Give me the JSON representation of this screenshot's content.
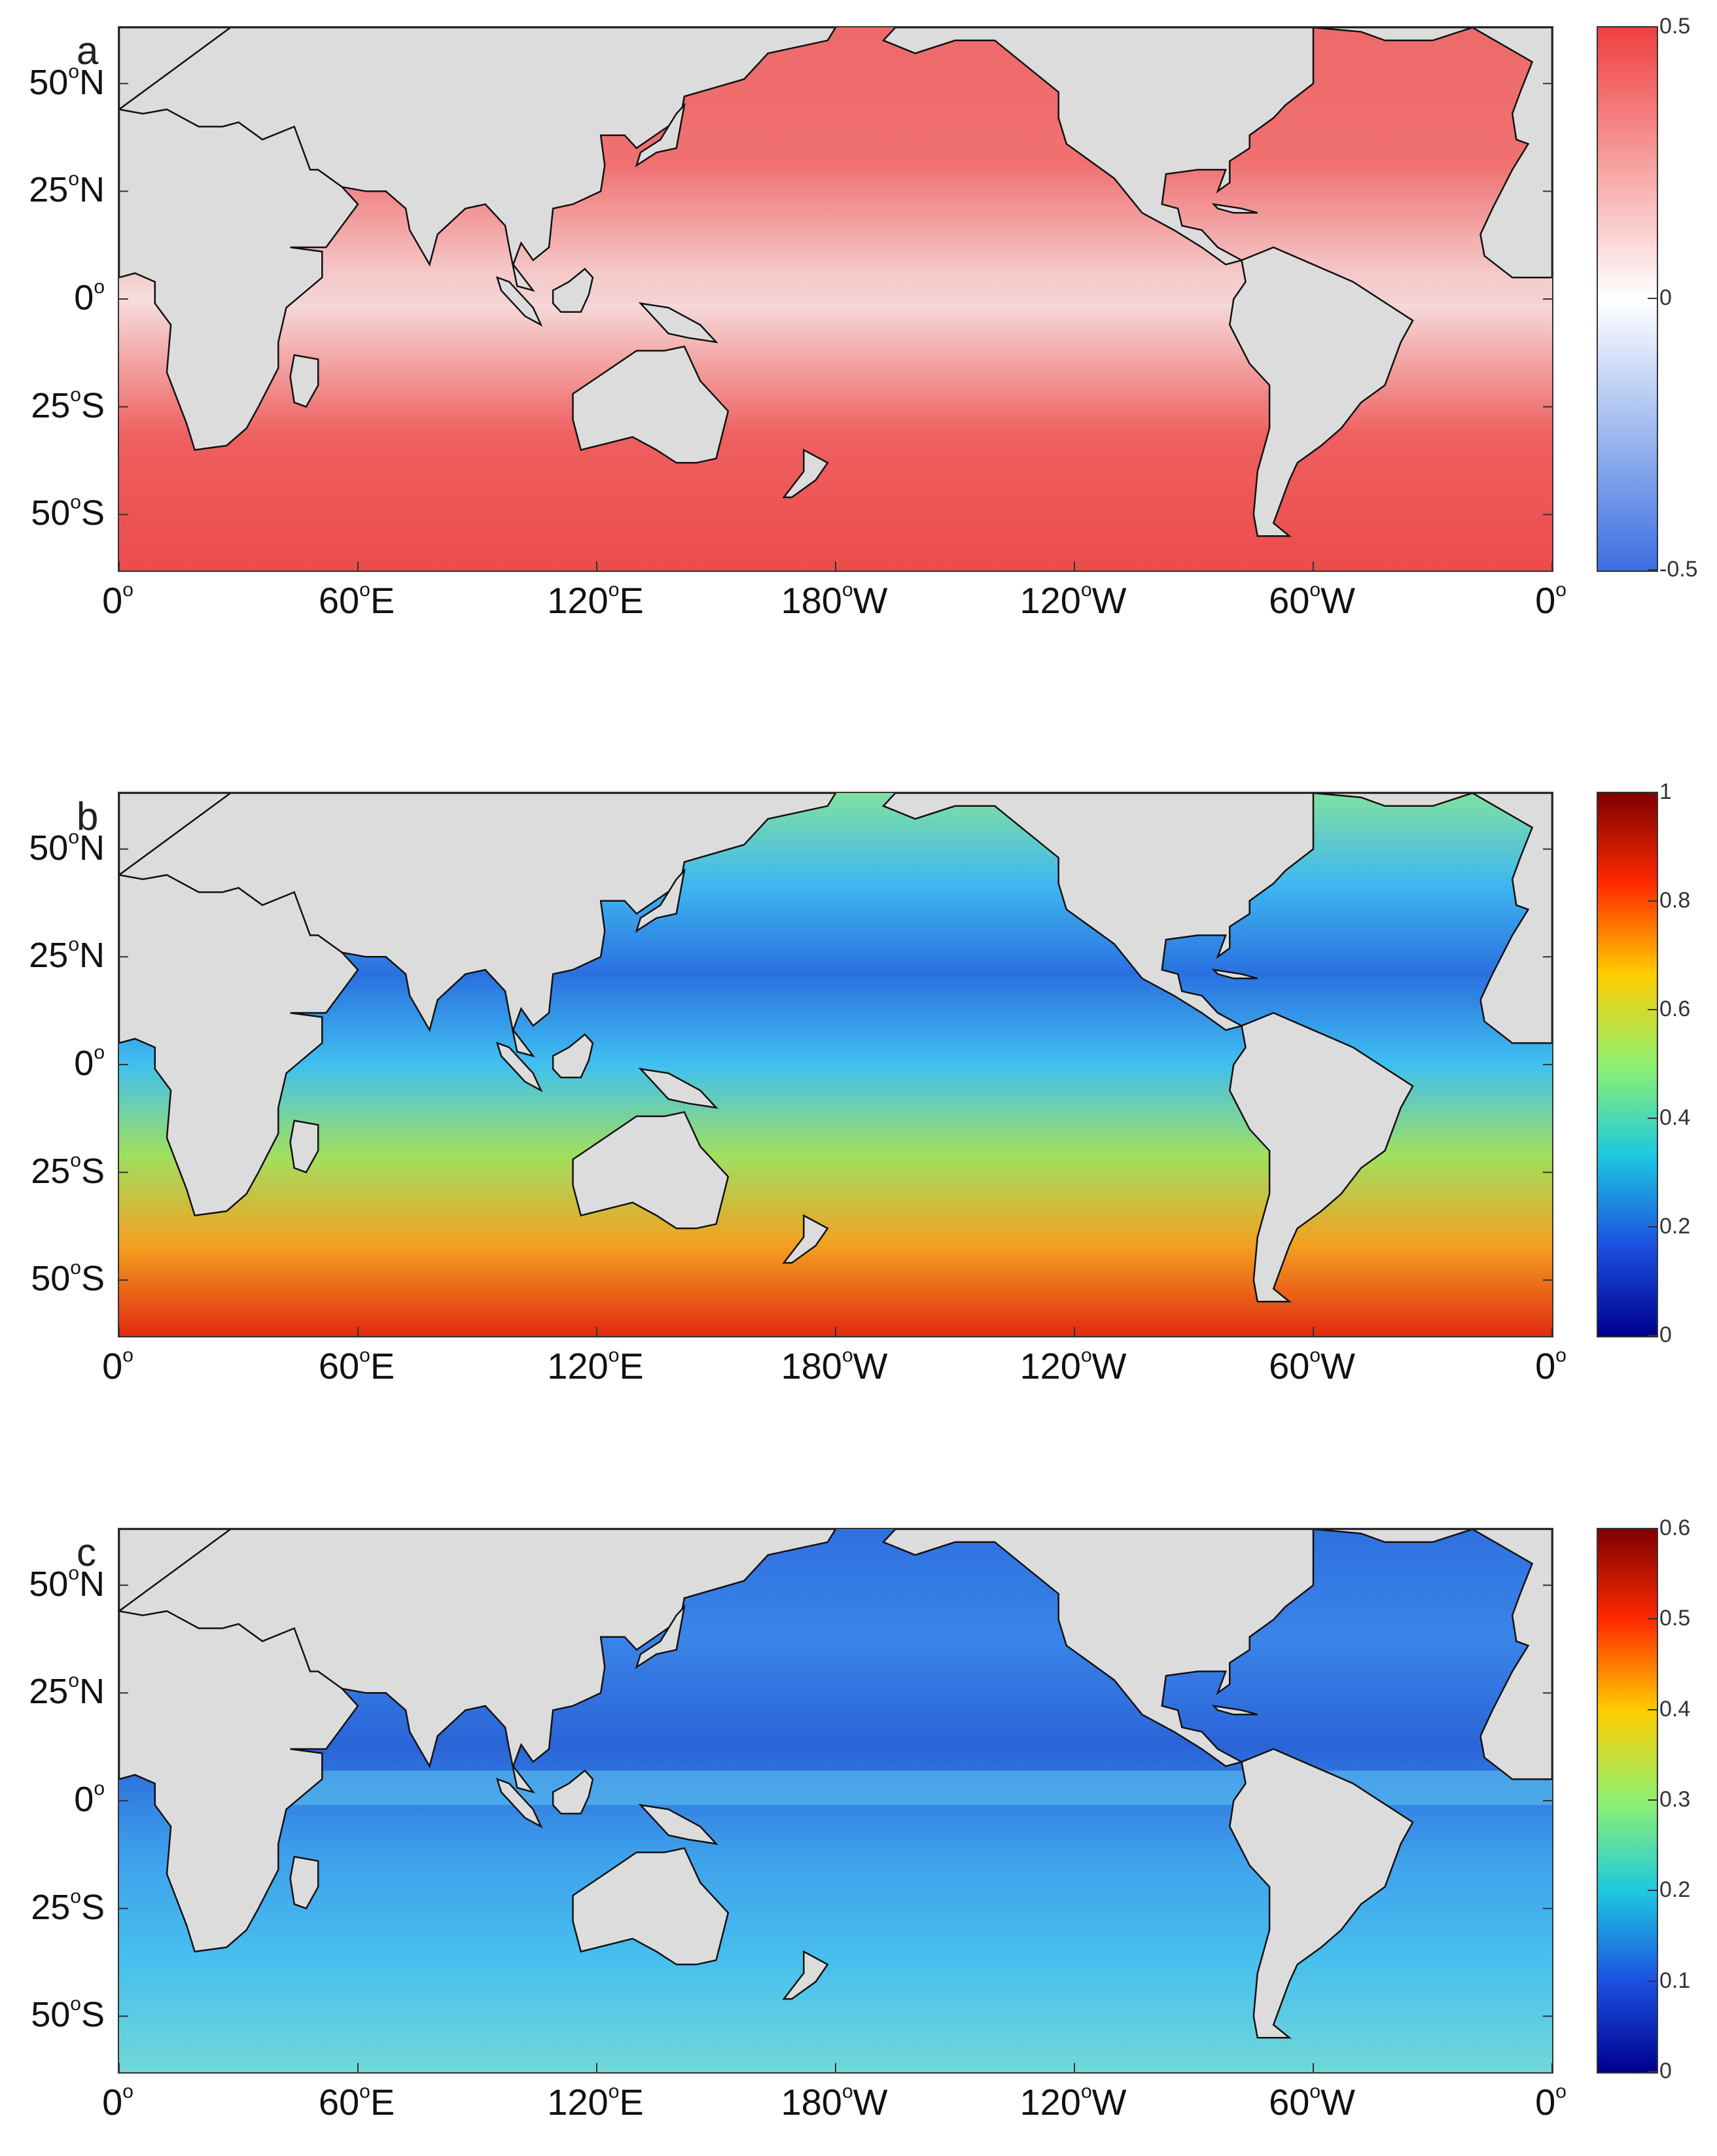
{
  "panels": [
    {
      "letter": "a",
      "colorbar": {
        "ticks": [
          "0.5",
          "0",
          "-0.5"
        ],
        "colors": [
          "#ef4040",
          "#ffffff",
          "#3b6fe0"
        ]
      },
      "ocean_color": "#ef5a5a",
      "band_color": "#f4c8c8"
    },
    {
      "letter": "b",
      "colorbar": {
        "ticks": [
          "1",
          "0.8",
          "0.6",
          "0.4",
          "0.2",
          "0"
        ],
        "colors": [
          "#7f0000",
          "#ff2a00",
          "#ffcc00",
          "#8ff070",
          "#1ec8e0",
          "#1c50e0",
          "#00008f"
        ]
      },
      "ocean_color": "#3fb0f0",
      "band_color": "#e84020"
    },
    {
      "letter": "c",
      "colorbar": {
        "ticks": [
          "0.6",
          "0.5",
          "0.4",
          "0.3",
          "0.2",
          "0.1",
          "0"
        ],
        "colors": [
          "#7f0000",
          "#ff2a00",
          "#ffcc00",
          "#8ff070",
          "#1ec8e0",
          "#1c50e0",
          "#00008f"
        ]
      },
      "ocean_color": "#2f80e8",
      "band_color": "#5fc8f0"
    }
  ],
  "lat_labels": [
    "50°N",
    "25°N",
    "0°",
    "25°S",
    "50°S"
  ],
  "lon_labels": [
    "0°",
    "60°E",
    "120°E",
    "180°W",
    "120°W",
    "60°W",
    "0°"
  ],
  "land_color": "#dcdcdc"
}
